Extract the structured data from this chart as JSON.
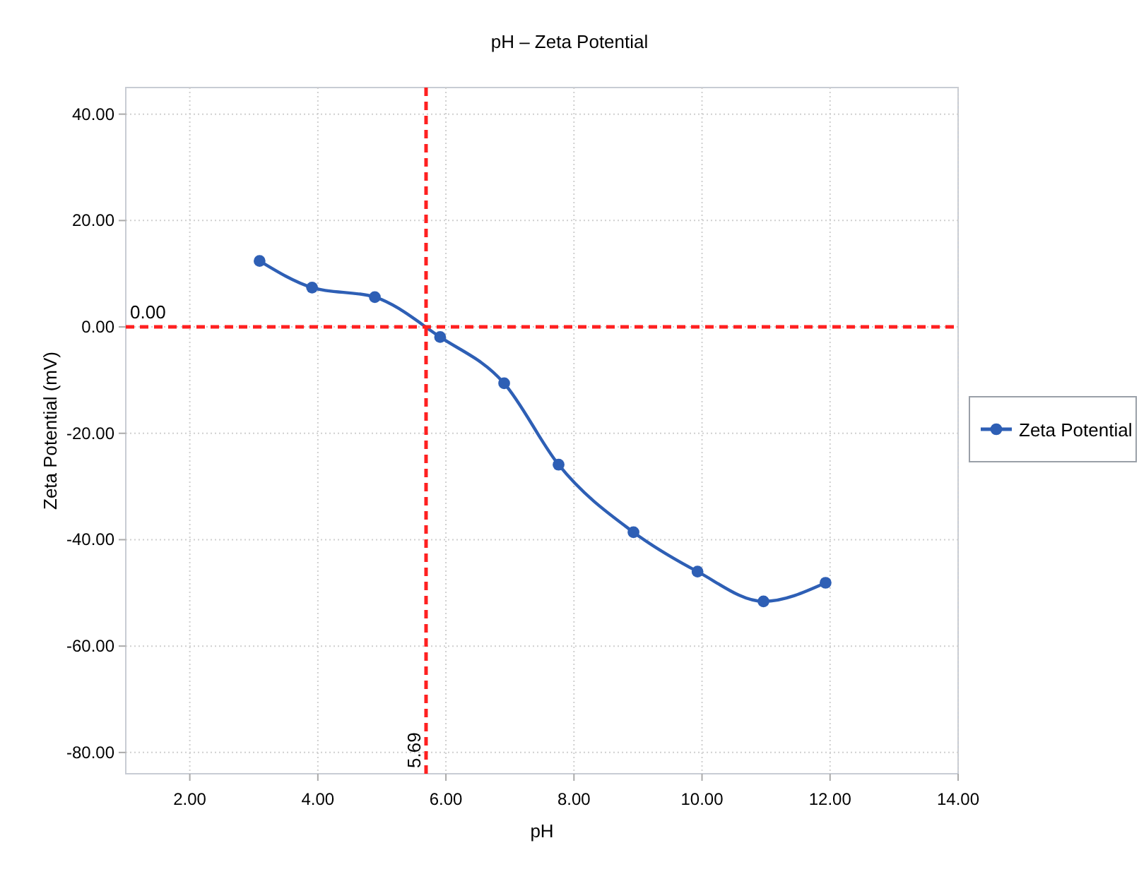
{
  "chart_data": {
    "type": "line",
    "title": "pH – Zeta Potential",
    "xlabel": "pH",
    "ylabel": "Zeta Potential (mV)",
    "x": [
      3.09,
      3.91,
      4.89,
      5.91,
      6.91,
      7.76,
      8.93,
      9.93,
      10.96,
      11.93
    ],
    "series": [
      {
        "name": "Zeta Potential",
        "color": "#2e5fb5",
        "values": [
          12.4,
          7.4,
          5.6,
          -1.9,
          -10.6,
          -25.9,
          -38.6,
          -46.0,
          -51.6,
          -48.1
        ]
      }
    ],
    "xlim": [
      1,
      14
    ],
    "xticks": [
      {
        "value": 2,
        "label": "2.00"
      },
      {
        "value": 4,
        "label": "4.00"
      },
      {
        "value": 6,
        "label": "6.00"
      },
      {
        "value": 8,
        "label": "8.00"
      },
      {
        "value": 10,
        "label": "10.00"
      },
      {
        "value": 12,
        "label": "12.00"
      },
      {
        "value": 14,
        "label": "14.00"
      }
    ],
    "ylim": [
      -84,
      45
    ],
    "yticks": [
      {
        "value": -80,
        "label": "-80.00"
      },
      {
        "value": -60,
        "label": "-60.00"
      },
      {
        "value": -40,
        "label": "-40.00"
      },
      {
        "value": -20,
        "label": "-20.00"
      },
      {
        "value": 0,
        "label": "0.00"
      },
      {
        "value": 20,
        "label": "20.00"
      },
      {
        "value": 40,
        "label": "40.00"
      }
    ],
    "ref_lines": [
      {
        "axis": "y",
        "value": 0,
        "label": "0.00",
        "color": "#ff2020",
        "line_style": "dashed"
      },
      {
        "axis": "x",
        "value": 5.69,
        "label": "5.69",
        "color": "#ff2020",
        "line_style": "dashed"
      }
    ],
    "grid": true,
    "legend": "right",
    "marker": "circle",
    "line_style": "solid"
  }
}
